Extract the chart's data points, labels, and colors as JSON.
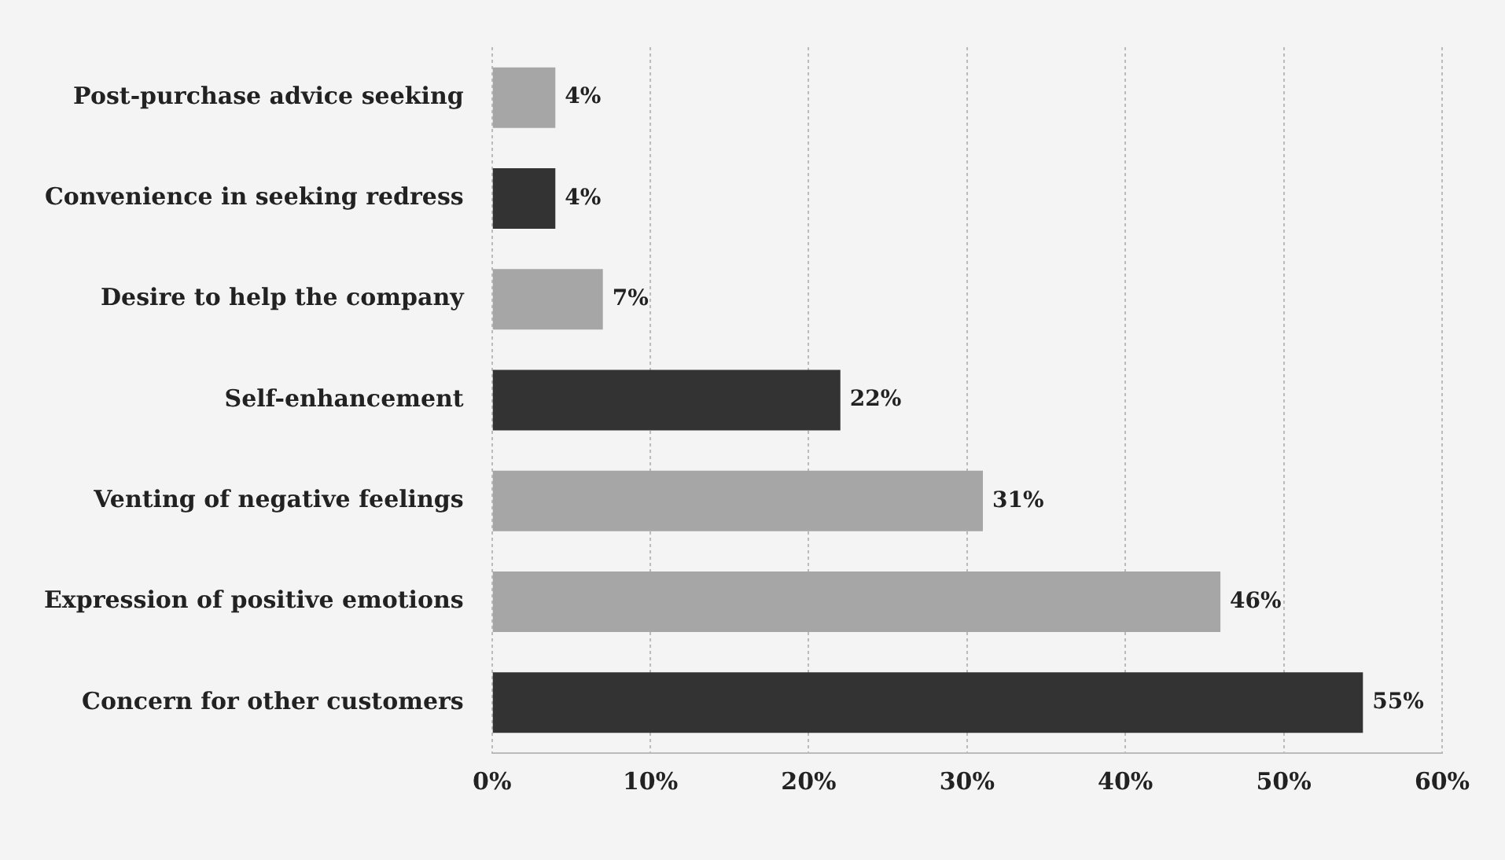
{
  "chart_data": {
    "type": "bar",
    "orientation": "horizontal",
    "categories": [
      "Post-purchase advice seeking",
      "Convenience in seeking redress",
      "Desire to help the company",
      "Self-enhancement",
      "Venting of negative feelings",
      "Expression of positive emotions",
      "Concern for other customers"
    ],
    "values": [
      4,
      4,
      7,
      22,
      31,
      46,
      55
    ],
    "colors": [
      "#a6a6a6",
      "#333333",
      "#a6a6a6",
      "#333333",
      "#a6a6a6",
      "#a6a6a6",
      "#333333"
    ],
    "value_labels": [
      "4%",
      "4%",
      "7%",
      "22%",
      "31%",
      "46%",
      "55%"
    ],
    "xlim": [
      0,
      60
    ],
    "xticks": [
      {
        "value": 0,
        "label": "0%"
      },
      {
        "value": 10,
        "label": "10%"
      },
      {
        "value": 20,
        "label": "20%"
      },
      {
        "value": 30,
        "label": "30%"
      },
      {
        "value": 40,
        "label": "40%"
      },
      {
        "value": 50,
        "label": "50%"
      },
      {
        "value": 60,
        "label": "60%"
      }
    ],
    "grid": "x",
    "legend": false
  }
}
